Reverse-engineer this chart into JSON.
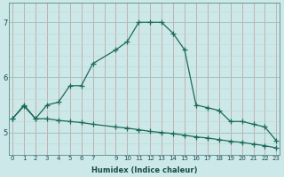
{
  "xlabel": "Humidex (Indice chaleur)",
  "bg_color": "#cce8e8",
  "line_color": "#1a6a5a",
  "line1_x": [
    0,
    1,
    2,
    3,
    4,
    5,
    6,
    7,
    9,
    10,
    11,
    12,
    13,
    14,
    15,
    16,
    17,
    18,
    19,
    20,
    21,
    22,
    23
  ],
  "line1_y": [
    5.25,
    5.5,
    5.25,
    5.5,
    5.55,
    5.85,
    5.85,
    6.25,
    6.5,
    6.65,
    7.0,
    7.0,
    7.0,
    6.8,
    6.5,
    5.5,
    5.45,
    5.4,
    5.2,
    5.2,
    5.15,
    5.1,
    4.85
  ],
  "line2_x": [
    0,
    1,
    2,
    3,
    4,
    5,
    6,
    7,
    9,
    10,
    11,
    12,
    13,
    14,
    15,
    16,
    17,
    18,
    19,
    20,
    21,
    22,
    23
  ],
  "line2_y": [
    5.25,
    5.48,
    5.25,
    5.25,
    5.22,
    5.2,
    5.18,
    5.15,
    5.1,
    5.08,
    5.05,
    5.02,
    5.0,
    4.98,
    4.95,
    4.92,
    4.9,
    4.87,
    4.84,
    4.82,
    4.79,
    4.76,
    4.72
  ],
  "ylim": [
    4.6,
    7.35
  ],
  "yticks": [
    5,
    6,
    7
  ],
  "xlim": [
    -0.3,
    23.3
  ],
  "all_xticks": [
    0,
    1,
    2,
    3,
    4,
    5,
    6,
    7,
    8,
    9,
    10,
    11,
    12,
    13,
    14,
    15,
    16,
    17,
    18,
    19,
    20,
    21,
    22,
    23
  ],
  "labeled_xticks": [
    0,
    1,
    2,
    3,
    4,
    5,
    6,
    7,
    9,
    10,
    11,
    12,
    13,
    14,
    15,
    16,
    17,
    18,
    19,
    20,
    21,
    22,
    23
  ],
  "marker": "+",
  "markersize": 4,
  "linewidth": 0.9,
  "xlabel_fontsize": 6.0,
  "tick_fontsize": 5.0,
  "ytick_fontsize": 6.0
}
